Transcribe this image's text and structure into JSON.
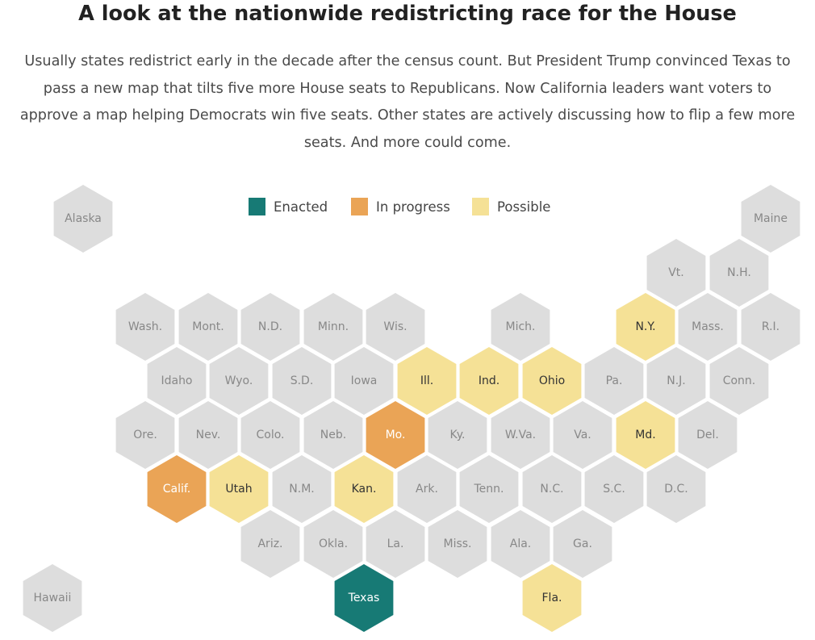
{
  "title": "A look at the nationwide redistricting race for the House",
  "subtitle": "Usually states redistrict early in the decade after the census count. But President Trump convinced Texas to pass a new map that tilts five more House seats to Republicans. Now California leaders want voters to approve a map helping Democrats win five seats. Other states are actively discussing how to flip a few more seats. And more could come.",
  "colors": {
    "enacted": "#177a75",
    "in_progress": "#eaa456",
    "possible": "#f5e196",
    "none": "#dddddd",
    "label_dark": "#ffffff",
    "label_possible": "#333333",
    "label_none": "#888888"
  },
  "legend": [
    {
      "status": "enacted",
      "label": "Enacted"
    },
    {
      "status": "in_progress",
      "label": "In progress"
    },
    {
      "status": "possible",
      "label": "Possible"
    }
  ],
  "states": [
    {
      "label": "Alaska",
      "status": "none"
    },
    {
      "label": "Maine",
      "status": "none"
    },
    {
      "label": "Vt.",
      "status": "none"
    },
    {
      "label": "N.H.",
      "status": "none"
    },
    {
      "label": "Wash.",
      "status": "none"
    },
    {
      "label": "Mont.",
      "status": "none"
    },
    {
      "label": "N.D.",
      "status": "none"
    },
    {
      "label": "Minn.",
      "status": "none"
    },
    {
      "label": "Wis.",
      "status": "none"
    },
    {
      "label": "Mich.",
      "status": "none"
    },
    {
      "label": "N.Y.",
      "status": "possible"
    },
    {
      "label": "Mass.",
      "status": "none"
    },
    {
      "label": "R.I.",
      "status": "none"
    },
    {
      "label": "Idaho",
      "status": "none"
    },
    {
      "label": "Wyo.",
      "status": "none"
    },
    {
      "label": "S.D.",
      "status": "none"
    },
    {
      "label": "Iowa",
      "status": "none"
    },
    {
      "label": "Ill.",
      "status": "possible"
    },
    {
      "label": "Ind.",
      "status": "possible"
    },
    {
      "label": "Ohio",
      "status": "possible"
    },
    {
      "label": "Pa.",
      "status": "none"
    },
    {
      "label": "N.J.",
      "status": "none"
    },
    {
      "label": "Conn.",
      "status": "none"
    },
    {
      "label": "Ore.",
      "status": "none"
    },
    {
      "label": "Nev.",
      "status": "none"
    },
    {
      "label": "Colo.",
      "status": "none"
    },
    {
      "label": "Neb.",
      "status": "none"
    },
    {
      "label": "Mo.",
      "status": "in_progress"
    },
    {
      "label": "Ky.",
      "status": "none"
    },
    {
      "label": "W.Va.",
      "status": "none"
    },
    {
      "label": "Va.",
      "status": "none"
    },
    {
      "label": "Md.",
      "status": "possible"
    },
    {
      "label": "Del.",
      "status": "none"
    },
    {
      "label": "Calif.",
      "status": "in_progress"
    },
    {
      "label": "Utah",
      "status": "possible"
    },
    {
      "label": "N.M.",
      "status": "none"
    },
    {
      "label": "Kan.",
      "status": "possible"
    },
    {
      "label": "Ark.",
      "status": "none"
    },
    {
      "label": "Tenn.",
      "status": "none"
    },
    {
      "label": "N.C.",
      "status": "none"
    },
    {
      "label": "S.C.",
      "status": "none"
    },
    {
      "label": "D.C.",
      "status": "none"
    },
    {
      "label": "Ariz.",
      "status": "none"
    },
    {
      "label": "Okla.",
      "status": "none"
    },
    {
      "label": "La.",
      "status": "none"
    },
    {
      "label": "Miss.",
      "status": "none"
    },
    {
      "label": "Ala.",
      "status": "none"
    },
    {
      "label": "Ga.",
      "status": "none"
    },
    {
      "label": "Hawaii",
      "status": "none"
    },
    {
      "label": "Texas",
      "status": "enacted"
    },
    {
      "label": "Fla.",
      "status": "possible"
    }
  ]
}
